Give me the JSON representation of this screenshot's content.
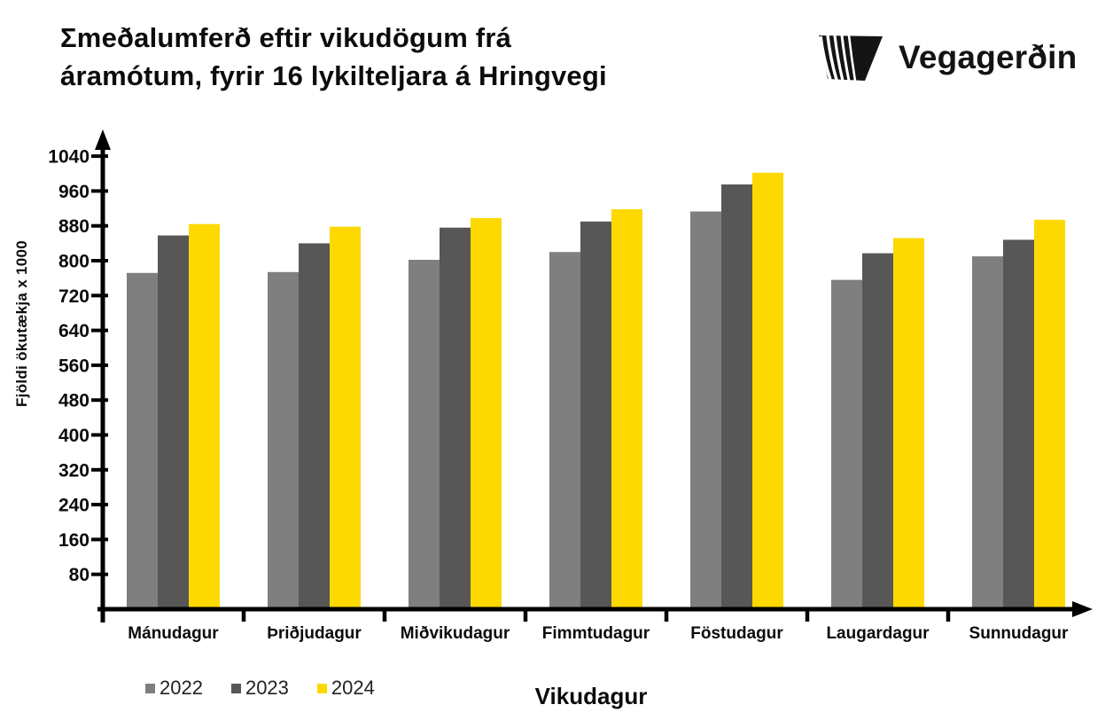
{
  "header": {
    "title": "Σmeðalumferð eftir vikudögum frá\náramótum, fyrir 16 lykilteljara á Hringvegi",
    "logo": {
      "text": "Vegagerðin"
    }
  },
  "chart_data": {
    "type": "bar",
    "title": "Σmeðalumferð eftir vikudögum frá áramótum, fyrir 16 lykilteljara á Hringvegi",
    "xlabel": "Vikudagur",
    "ylabel": "Fjöldi ökutækja x 1000",
    "categories": [
      "Mánudagur",
      "Þriðjudagur",
      "Miðvikudagur",
      "Fimmtudagur",
      "Föstudagur",
      "Laugardagur",
      "Sunnudagur"
    ],
    "series": [
      {
        "name": "2022",
        "color": "#7F7F7F",
        "values": [
          772,
          774,
          802,
          820,
          913,
          756,
          810
        ]
      },
      {
        "name": "2023",
        "color": "#575757",
        "values": [
          858,
          840,
          876,
          890,
          975,
          817,
          848
        ]
      },
      {
        "name": "2024",
        "color": "#FDD900",
        "values": [
          884,
          878,
          898,
          918,
          1002,
          852,
          894
        ]
      }
    ],
    "y_ticks": [
      80,
      160,
      240,
      320,
      400,
      480,
      560,
      640,
      720,
      800,
      880,
      960,
      1040
    ],
    "ylim": [
      0,
      1090
    ],
    "grid": false,
    "legend_position": "bottom-left",
    "axis_color": "#000000"
  }
}
